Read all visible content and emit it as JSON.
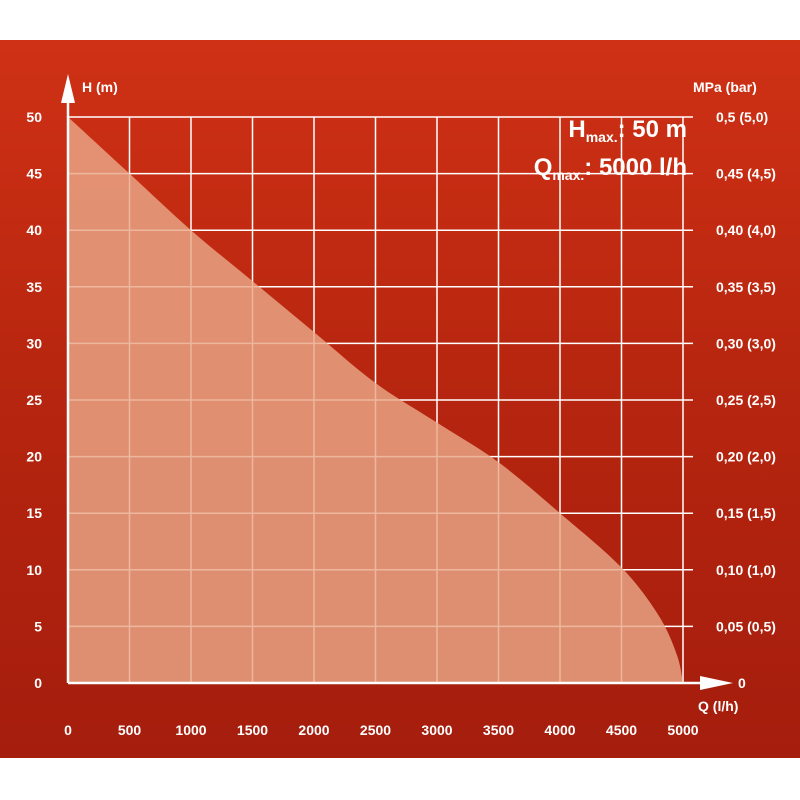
{
  "chart_data": {
    "type": "area",
    "x": [
      0,
      500,
      1000,
      1500,
      2000,
      2500,
      3000,
      3500,
      4000,
      4500,
      4800,
      4950,
      5000
    ],
    "values": [
      50,
      45,
      40,
      35.5,
      31,
      26.5,
      23,
      19.5,
      15,
      10.2,
      6,
      2.5,
      0
    ],
    "xlabel": "Q (l/h)",
    "ylabel": "H (m)",
    "y2label": "MPa (bar)",
    "xlim": [
      0,
      5000
    ],
    "ylim": [
      0,
      50
    ],
    "x_ticks": [
      "0",
      "500",
      "1000",
      "1500",
      "2000",
      "2500",
      "3000",
      "3500",
      "4000",
      "4500",
      "5000"
    ],
    "y_ticks": [
      "0",
      "5",
      "10",
      "15",
      "20",
      "25",
      "30",
      "35",
      "40",
      "45",
      "50"
    ],
    "y2_ticks": [
      "0",
      "0,05 (0,5)",
      "0,10 (1,0)",
      "0,15 (1,5)",
      "0,20 (2,0)",
      "0,25 (2,5)",
      "0,30 (3,0)",
      "0,35 (3,5)",
      "0,40 (4,0)",
      "0,45 (4,5)",
      "0,5 (5,0)"
    ],
    "grid": true,
    "colors": {
      "fill": "#e9a787",
      "grid": "#ffffff",
      "background": "#b8260f",
      "text": "#ffffff"
    },
    "annotations": {
      "hmax": {
        "base": "H",
        "sub": "max.",
        "value": ": 50 m"
      },
      "qmax": {
        "base": "Q",
        "sub": "max.",
        "value": ": 5000 l/h"
      }
    }
  }
}
